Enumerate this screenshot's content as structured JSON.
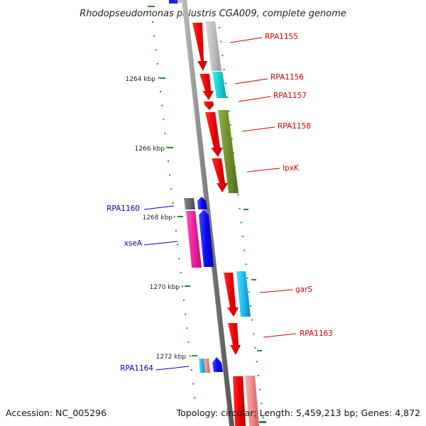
{
  "title": "Rhodopseudomonas palustris CGA009, complete genome",
  "footer": {
    "accession": "Accession: NC_005296",
    "summary": "Topology: circular; Length: 5,459,213 bp; Genes: 4,872"
  },
  "colors": {
    "ruler_tick": "#2a8a2a",
    "backbone": "#888888",
    "label_forward": "#cc0000",
    "label_reverse": "#0000cc"
  },
  "kbp_labels": [
    "1264 kbp",
    "1266 kbp",
    "1268 kbp",
    "1270 kbp",
    "1272 kbp"
  ],
  "gene_labels": [
    {
      "name": "RPA1155",
      "strand": "forward"
    },
    {
      "name": "RPA1156",
      "strand": "forward"
    },
    {
      "name": "RPA1157",
      "strand": "forward"
    },
    {
      "name": "RPA1158",
      "strand": "forward"
    },
    {
      "name": "lpxK",
      "strand": "forward"
    },
    {
      "name": "RPA1160",
      "strand": "reverse"
    },
    {
      "name": "xseA",
      "strand": "reverse"
    },
    {
      "name": "garS",
      "strand": "forward"
    },
    {
      "name": "RPA1163",
      "strand": "forward"
    },
    {
      "name": "RPA1164",
      "strand": "reverse"
    }
  ]
}
